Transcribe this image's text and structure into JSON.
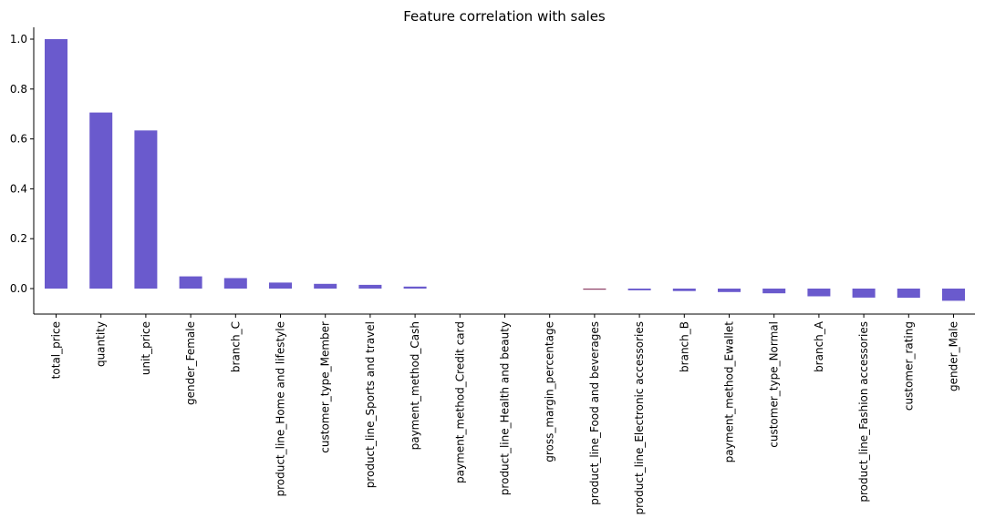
{
  "chart_data": {
    "type": "bar",
    "title": "Feature correlation with sales",
    "xlabel": "",
    "ylabel": "",
    "categories": [
      "total_price",
      "quantity",
      "unit_price",
      "gender_Female",
      "branch_C",
      "product_line_Home and lifestyle",
      "customer_type_Member",
      "product_line_Sports and travel",
      "payment_method_Cash",
      "payment_method_Credit card",
      "product_line_Health and beauty",
      "gross_margin_percentage",
      "product_line_Food and beverages",
      "product_line_Electronic accessories",
      "branch_B",
      "payment_method_Ewallet",
      "customer_type_Normal",
      "branch_A",
      "product_line_Fashion accessories",
      "customer_rating",
      "gender_Male"
    ],
    "values": [
      1.0,
      0.706,
      0.634,
      0.049,
      0.042,
      0.024,
      0.019,
      0.015,
      0.008,
      0.0,
      0.0,
      0.0,
      -0.003,
      -0.007,
      -0.01,
      -0.014,
      -0.019,
      -0.031,
      -0.036,
      -0.037,
      -0.049
    ],
    "ylim": [
      -0.1,
      1.05
    ],
    "yticks": [
      "0.0",
      "0.2",
      "0.4",
      "0.6",
      "0.8",
      "1.0"
    ],
    "grid": false,
    "legend": "none",
    "bar_color": "#6a5acd",
    "negative_bar_color_small": "#8b3a62"
  }
}
